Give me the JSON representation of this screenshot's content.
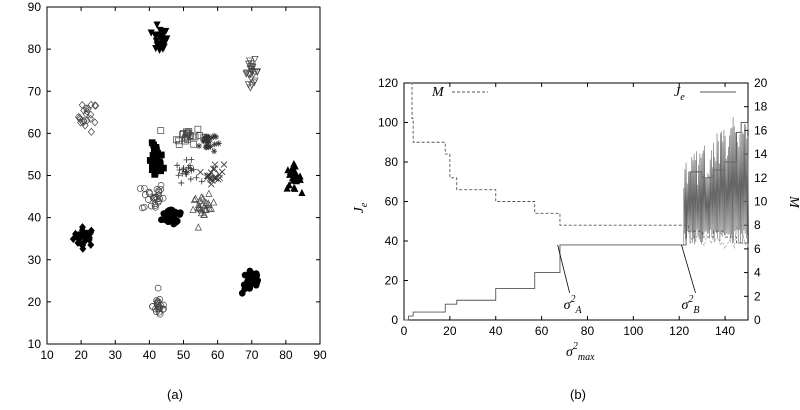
{
  "chart_data": [
    {
      "type": "scatter",
      "caption": "(a)",
      "xlim": [
        10,
        90
      ],
      "ylim": [
        10,
        90
      ],
      "xticks": [
        "10",
        "20",
        "30",
        "40",
        "50",
        "60",
        "70",
        "80",
        "90"
      ],
      "yticks": [
        "10",
        "20",
        "30",
        "40",
        "50",
        "60",
        "70",
        "80",
        "90"
      ],
      "clusters": [
        {
          "marker": "filled-diamond",
          "filled": true,
          "cx": 21,
          "cy": 35.5,
          "sx": 1.6,
          "sy": 1.1,
          "n": 30
        },
        {
          "marker": "diamond",
          "filled": false,
          "cx": 22,
          "cy": 64,
          "sx": 1.4,
          "sy": 1.8,
          "n": 22
        },
        {
          "marker": "filled-triangle-down",
          "filled": true,
          "cx": 43,
          "cy": 82,
          "sx": 1.2,
          "sy": 1.5,
          "n": 24
        },
        {
          "marker": "filled-square",
          "filled": true,
          "cx": 42,
          "cy": 53,
          "sx": 1.0,
          "sy": 2.2,
          "n": 28
        },
        {
          "marker": "circle",
          "filled": false,
          "cx": 41,
          "cy": 45,
          "sx": 1.6,
          "sy": 1.8,
          "n": 28
        },
        {
          "marker": "filled-circle",
          "filled": true,
          "cx": 47,
          "cy": 40.5,
          "sx": 1.6,
          "sy": 1.2,
          "n": 30
        },
        {
          "marker": "square",
          "filled": false,
          "cx": 51,
          "cy": 59.5,
          "sx": 2.2,
          "sy": 1.0,
          "n": 24
        },
        {
          "marker": "plus",
          "filled": false,
          "cx": 51,
          "cy": 51,
          "sx": 1.6,
          "sy": 1.2,
          "n": 22
        },
        {
          "marker": "asterisk",
          "filled": false,
          "cx": 57,
          "cy": 58,
          "sx": 1.2,
          "sy": 1.4,
          "n": 24
        },
        {
          "marker": "cross",
          "filled": false,
          "cx": 59,
          "cy": 50.5,
          "sx": 1.4,
          "sy": 1.2,
          "n": 22
        },
        {
          "marker": "triangle",
          "filled": false,
          "cx": 56,
          "cy": 42.5,
          "sx": 1.6,
          "sy": 1.4,
          "n": 26
        },
        {
          "marker": "triangle-down",
          "filled": false,
          "cx": 70,
          "cy": 74.5,
          "sx": 1.0,
          "sy": 1.4,
          "n": 24
        },
        {
          "marker": "filled-triangle",
          "filled": true,
          "cx": 82,
          "cy": 49.5,
          "sx": 1.2,
          "sy": 1.4,
          "n": 24
        },
        {
          "marker": "filled-circle",
          "filled": true,
          "cx": 70,
          "cy": 25,
          "sx": 1.4,
          "sy": 1.6,
          "n": 28
        },
        {
          "marker": "circle",
          "filled": false,
          "cx": 43,
          "cy": 19,
          "sx": 1.0,
          "sy": 1.3,
          "n": 22
        }
      ]
    },
    {
      "type": "line",
      "caption": "(b)",
      "xlabel": "σ",
      "xlabel_sup": "2",
      "xlabel_sub": "max",
      "ylabel": "J",
      "ylabel_sub": "e",
      "y2label": "M",
      "xlim": [
        0,
        150
      ],
      "ylim": [
        0,
        120
      ],
      "y2lim": [
        0,
        20
      ],
      "xticks": [
        "0",
        "20",
        "40",
        "60",
        "80",
        "100",
        "120",
        "140"
      ],
      "yticks": [
        "0",
        "20",
        "40",
        "60",
        "80",
        "100",
        "120"
      ],
      "y2ticks": [
        "0",
        "2",
        "4",
        "6",
        "8",
        "10",
        "12",
        "14",
        "16",
        "18",
        "20"
      ],
      "legend": [
        {
          "label": "M",
          "style": "dashed"
        },
        {
          "label": "J",
          "label_sub": "e",
          "style": "solid"
        }
      ],
      "series": [
        {
          "name": "M",
          "axis": "right",
          "style": "dashed",
          "x": [
            3,
            3.5,
            4,
            16,
            18,
            20,
            22,
            23,
            39,
            40,
            56,
            57,
            67,
            68,
            121,
            124,
            127,
            130,
            135,
            140,
            145,
            150
          ],
          "y": [
            20,
            17,
            15,
            15,
            14,
            12,
            12,
            11,
            11,
            10,
            10,
            9,
            9,
            8,
            8,
            7.5,
            7.5,
            7,
            7.5,
            7,
            6.5,
            6
          ]
        },
        {
          "name": "J_e",
          "axis": "left",
          "style": "solid",
          "x": [
            0,
            2,
            4,
            16,
            18,
            22,
            23,
            39,
            40,
            56,
            57,
            67,
            68,
            122,
            123,
            125,
            130,
            135,
            140,
            145,
            147,
            150
          ],
          "y": [
            0,
            2,
            4,
            4,
            8,
            8,
            10,
            10,
            16,
            16,
            24,
            24,
            38,
            38,
            60,
            75,
            72,
            76,
            80,
            95,
            100,
            96
          ]
        }
      ],
      "annotations": [
        {
          "label": "σ",
          "sup": "2",
          "sub": "A",
          "x": 67,
          "y": 38
        },
        {
          "label": "σ",
          "sup": "2",
          "sub": "B",
          "x": 121,
          "y": 38
        }
      ]
    }
  ]
}
